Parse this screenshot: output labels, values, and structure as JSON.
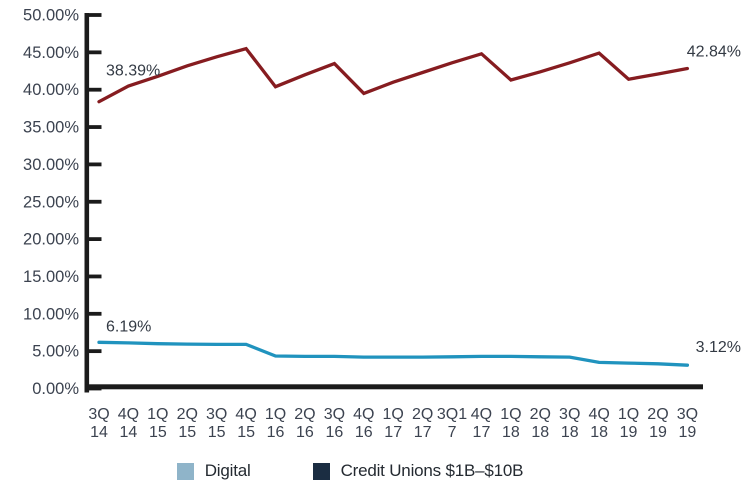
{
  "chart_data": {
    "type": "line",
    "title": "",
    "xlabel": "",
    "ylabel": "",
    "grid": false,
    "legend_position": "bottom",
    "categories": [
      "3Q 14",
      "4Q 14",
      "1Q 15",
      "2Q 15",
      "3Q 15",
      "4Q 15",
      "1Q 16",
      "2Q 16",
      "3Q 16",
      "4Q 16",
      "1Q 17",
      "2Q 17",
      "3Q 17",
      "4Q 17",
      "1Q 18",
      "2Q 18",
      "3Q 18",
      "4Q 18",
      "1Q 19",
      "2Q 19",
      "3Q 19"
    ],
    "x_tick_rows": [
      [
        "3Q",
        "14"
      ],
      [
        "4Q",
        "14"
      ],
      [
        "1Q",
        "15"
      ],
      [
        "2Q",
        "15"
      ],
      [
        "3Q",
        "15"
      ],
      [
        "4Q",
        "15"
      ],
      [
        "1Q",
        "16"
      ],
      [
        "2Q",
        "16"
      ],
      [
        "3Q",
        "16"
      ],
      [
        "4Q",
        "16"
      ],
      [
        "1Q",
        "17"
      ],
      [
        "2Q",
        "17"
      ],
      [
        "3Q1",
        "7"
      ],
      [
        "4Q",
        "17"
      ],
      [
        "1Q",
        "18"
      ],
      [
        "2Q",
        "18"
      ],
      [
        "3Q",
        "18"
      ],
      [
        "4Q",
        "18"
      ],
      [
        "1Q",
        "19"
      ],
      [
        "2Q",
        "19"
      ],
      [
        "3Q",
        "19"
      ]
    ],
    "y_axis": {
      "min": 0,
      "max": 50,
      "step": 5,
      "tick_labels": [
        "50.00%",
        "45.00%",
        "40.00%",
        "35.00%",
        "30.00%",
        "25.00%",
        "20.00%",
        "15.00%",
        "10.00%",
        "5.00%",
        "0.00%"
      ]
    },
    "series": [
      {
        "name": "Digital",
        "line_color": "#2093be",
        "swatch_color": "#8fb4c9",
        "values": [
          6.19,
          6.1,
          6.0,
          5.95,
          5.9,
          5.9,
          4.35,
          4.3,
          4.3,
          4.2,
          4.2,
          4.2,
          4.25,
          4.3,
          4.3,
          4.25,
          4.2,
          3.5,
          3.4,
          3.3,
          3.12
        ]
      },
      {
        "name": "Credit Unions $1B–$10B",
        "line_color": "#861c20",
        "swatch_color": "#1b2d42",
        "values": [
          38.39,
          40.5,
          41.8,
          43.2,
          44.4,
          45.5,
          40.4,
          42.0,
          43.5,
          39.5,
          41.0,
          42.3,
          43.6,
          44.8,
          41.3,
          42.4,
          43.6,
          44.9,
          41.4,
          42.1,
          42.84
        ]
      }
    ],
    "annotations": [
      {
        "text": "38.39%",
        "series_index": 1,
        "point_index": 0,
        "align": "start"
      },
      {
        "text": "42.84%",
        "series_index": 1,
        "point_index": 20,
        "align": "end"
      },
      {
        "text": "6.19%",
        "series_index": 0,
        "point_index": 0,
        "align": "start"
      },
      {
        "text": "3.12%",
        "series_index": 0,
        "point_index": 20,
        "align": "end"
      }
    ],
    "colors": {
      "axis": "#1b1b1b",
      "tick_label_text": "#3c4350",
      "annotation_text": "#333a44"
    }
  },
  "legend": {
    "items": [
      {
        "label": "Digital"
      },
      {
        "label": "Credit Unions $1B–$10B"
      }
    ]
  }
}
